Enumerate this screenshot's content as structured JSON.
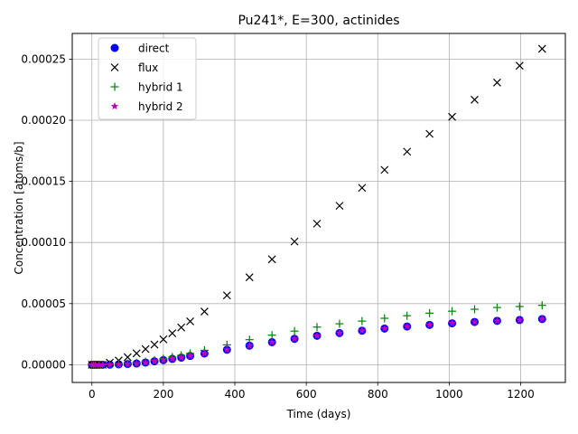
{
  "chart_data": {
    "type": "scatter",
    "title": "Pu241*, E=300, actinides",
    "xlabel": "Time (days)",
    "ylabel": "Concentration [atoms/b]",
    "xlim": [
      -55,
      1325
    ],
    "ylim": [
      -1.45e-05,
      0.000271
    ],
    "xticks": [
      0,
      200,
      400,
      600,
      800,
      1000,
      1200
    ],
    "xtick_labels": [
      "0",
      "200",
      "400",
      "600",
      "800",
      "1000",
      "1200"
    ],
    "yticks": [
      0,
      5e-05,
      0.0001,
      0.00015,
      0.0002,
      0.00025
    ],
    "ytick_labels": [
      "0.00000",
      "0.00005",
      "0.00010",
      "0.00015",
      "0.00020",
      "0.00025"
    ],
    "grid": true,
    "legend_position": "top-left",
    "x": [
      0,
      5,
      10,
      20,
      30,
      50,
      75,
      100,
      125,
      150,
      175,
      200,
      225,
      250,
      275,
      315,
      378,
      441,
      504,
      567,
      630,
      693,
      756,
      819,
      882,
      945,
      1008,
      1071,
      1134,
      1197,
      1260
    ],
    "series": [
      {
        "name": "direct",
        "marker": "circle",
        "color": "#0000ff",
        "values": [
          0,
          0,
          0,
          0,
          0,
          1e-07,
          3e-07,
          6e-07,
          1e-06,
          1.8e-06,
          2.8e-06,
          3.8e-06,
          4.8e-06,
          5.8e-06,
          7.2e-06,
          9.2e-06,
          1.23e-05,
          1.56e-05,
          1.85e-05,
          2.12e-05,
          2.37e-05,
          2.59e-05,
          2.78e-05,
          2.96e-05,
          3.13e-05,
          3.26e-05,
          3.39e-05,
          3.5e-05,
          3.59e-05,
          3.66e-05,
          3.74e-05
        ]
      },
      {
        "name": "flux",
        "marker": "x",
        "color": "#000000",
        "values": [
          0,
          0,
          0,
          0,
          0,
          1.7e-06,
          3.5e-06,
          6.2e-06,
          9.3e-06,
          1.28e-05,
          1.65e-05,
          2.08e-05,
          2.58e-05,
          3.05e-05,
          3.55e-05,
          4.35e-05,
          5.67e-05,
          7.15e-05,
          8.62e-05,
          0.0001008,
          0.0001154,
          0.00013,
          0.0001447,
          0.0001594,
          0.0001743,
          0.0001889,
          0.0002028,
          0.0002168,
          0.0002308,
          0.0002446,
          0.0002585
        ]
      },
      {
        "name": "hybrid 1",
        "marker": "plus",
        "color": "#008000",
        "values": [
          0,
          0,
          0,
          0,
          0,
          2e-07,
          5e-07,
          9e-07,
          1.5e-06,
          2.5e-06,
          3.8e-06,
          5e-06,
          6.3e-06,
          7.7e-06,
          9.3e-06,
          1.18e-05,
          1.63e-05,
          2.05e-05,
          2.42e-05,
          2.75e-05,
          3.08e-05,
          3.35e-05,
          3.57e-05,
          3.8e-05,
          4.01e-05,
          4.22e-05,
          4.38e-05,
          4.54e-05,
          4.68e-05,
          4.76e-05,
          4.86e-05
        ]
      },
      {
        "name": "hybrid 2",
        "marker": "star",
        "color": "#bf00bf",
        "values": [
          0,
          0,
          0,
          0,
          0,
          1e-07,
          3e-07,
          6e-07,
          1e-06,
          1.8e-06,
          2.8e-06,
          3.8e-06,
          4.8e-06,
          5.8e-06,
          7.2e-06,
          9.2e-06,
          1.23e-05,
          1.56e-05,
          1.85e-05,
          2.12e-05,
          2.37e-05,
          2.59e-05,
          2.78e-05,
          2.96e-05,
          3.13e-05,
          3.26e-05,
          3.39e-05,
          3.5e-05,
          3.59e-05,
          3.66e-05,
          3.74e-05
        ]
      }
    ]
  }
}
